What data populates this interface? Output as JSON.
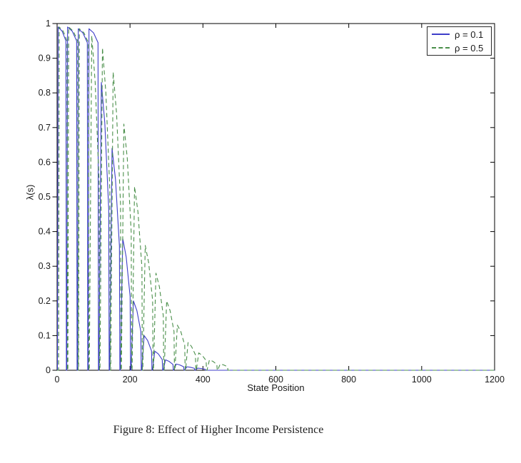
{
  "figure": {
    "caption": "Figure 8: Effect of Higher Income Persistence"
  },
  "chart_data": {
    "type": "line",
    "title": "",
    "xlabel": "State Position",
    "ylabel": "λ(s)",
    "xlim": [
      0,
      1200
    ],
    "ylim": [
      0,
      1
    ],
    "xticks": [
      0,
      200,
      400,
      600,
      800,
      1000,
      1200
    ],
    "yticks": [
      0,
      0.1,
      0.2,
      0.3,
      0.4,
      0.5,
      0.6,
      0.7,
      0.8,
      0.9,
      1
    ],
    "grid": false,
    "axis_color": "#000000",
    "tick_label_color": "#1a1a1a",
    "legend": {
      "position": "top-right",
      "entries": [
        {
          "label": "ρ = 0.1",
          "color": "#3e3ec9",
          "dash": "solid"
        },
        {
          "label": "ρ = 0.5",
          "color": "#4a8f4a",
          "dash": "dashed"
        }
      ]
    },
    "series": [
      {
        "name": "ρ = 0.1",
        "color": "#3e3ec9",
        "style": "solid",
        "note": "periodic sawtooth spikes, period ~29.3 state units; peaks decay to zero by x~400, then flat at 0 until 1200",
        "spikes": [
          {
            "rise": 1.0,
            "drop": 24.2,
            "peak": 0.99
          },
          {
            "rise": 26.6,
            "drop": 53.55,
            "peak": 0.99
          },
          {
            "rise": 55.95,
            "drop": 82.9,
            "peak": 0.985
          },
          {
            "rise": 85.3,
            "drop": 112.25,
            "peak": 0.985
          },
          {
            "rise": 114.65,
            "drop": 141.6,
            "peak": 0.83
          },
          {
            "rise": 144.0,
            "drop": 170.95,
            "peak": 0.64
          },
          {
            "rise": 173.35,
            "drop": 200.3,
            "peak": 0.38
          },
          {
            "rise": 202.7,
            "drop": 229.65,
            "peak": 0.2
          },
          {
            "rise": 232.05,
            "drop": 259.0,
            "peak": 0.1
          },
          {
            "rise": 261.4,
            "drop": 288.35,
            "peak": 0.055
          },
          {
            "rise": 290.75,
            "drop": 317.7,
            "peak": 0.03
          },
          {
            "rise": 320.1,
            "drop": 347.05,
            "peak": 0.018
          },
          {
            "rise": 349.45,
            "drop": 376.4,
            "peak": 0.01
          },
          {
            "rise": 378.8,
            "drop": 405.75,
            "peak": 0.006
          }
        ]
      },
      {
        "name": "ρ = 0.5",
        "color": "#4a8f4a",
        "style": "dashed",
        "note": "same spike period shifted ~+3 units; envelope decays more slowly, reaching zero by x~470",
        "spikes": [
          {
            "rise": 4.0,
            "drop": 27.2,
            "peak": 0.99
          },
          {
            "rise": 29.6,
            "drop": 56.55,
            "peak": 0.99
          },
          {
            "rise": 58.95,
            "drop": 85.9,
            "peak": 0.985
          },
          {
            "rise": 88.3,
            "drop": 115.25,
            "peak": 0.965
          },
          {
            "rise": 117.65,
            "drop": 144.6,
            "peak": 0.93
          },
          {
            "rise": 147.0,
            "drop": 173.95,
            "peak": 0.86
          },
          {
            "rise": 176.35,
            "drop": 203.3,
            "peak": 0.71
          },
          {
            "rise": 205.7,
            "drop": 232.65,
            "peak": 0.53
          },
          {
            "rise": 235.05,
            "drop": 262.0,
            "peak": 0.36
          },
          {
            "rise": 264.4,
            "drop": 291.35,
            "peak": 0.28
          },
          {
            "rise": 293.75,
            "drop": 320.7,
            "peak": 0.2
          },
          {
            "rise": 323.1,
            "drop": 350.05,
            "peak": 0.13
          },
          {
            "rise": 352.45,
            "drop": 379.4,
            "peak": 0.08
          },
          {
            "rise": 381.8,
            "drop": 408.75,
            "peak": 0.05
          },
          {
            "rise": 411.15,
            "drop": 438.1,
            "peak": 0.03
          },
          {
            "rise": 440.5,
            "drop": 467.45,
            "peak": 0.018
          }
        ]
      }
    ]
  }
}
